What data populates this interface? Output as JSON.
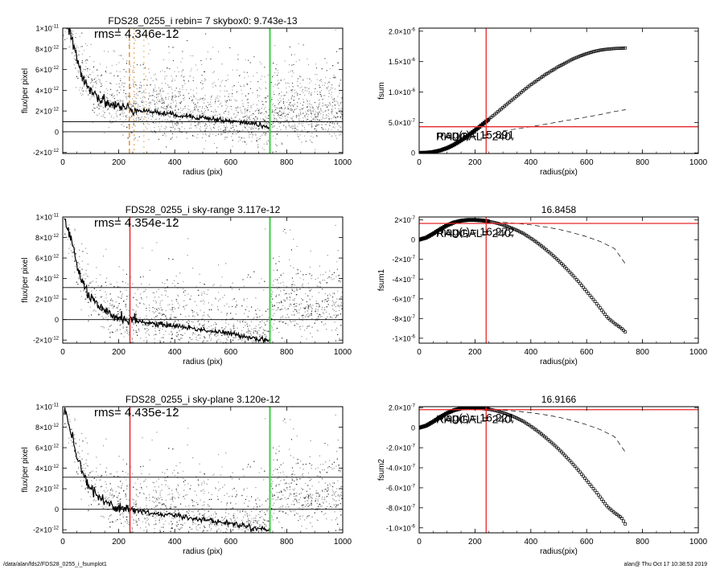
{
  "colors": {
    "scatter": "#999999",
    "scatter_dark": "#333333",
    "profile": "#000000",
    "red": "#e8262a",
    "green": "#3fcf3f",
    "orange": "#e8962e",
    "axis": "#000000",
    "sum_marker": "#000000"
  },
  "footer": {
    "left": "/data/alan/fds2/FDS28_0255_i_fsumplot1",
    "right": "alan@  Thu Oct 17 10:38:53 2019"
  },
  "chart_data": [
    {
      "id": "flux1",
      "type": "scatter",
      "title": "FDS28_0255_i rebin= 7    skybox0:  9.743e-13",
      "rms_label": "rms= 4.346e-12",
      "xlabel": "radius (pix)",
      "ylabel": "flux/per pixel",
      "xlim": [
        0,
        1000
      ],
      "ylim": [
        -2.1e-12,
        1e-11
      ],
      "x_ticks": [
        0,
        200,
        400,
        600,
        800,
        1000
      ],
      "x_tick_labels": [
        "0",
        "200",
        "400",
        "600",
        "800",
        "1000"
      ],
      "y_ticks": [
        -2e-12,
        0,
        2e-12,
        4e-12,
        6e-12,
        8e-12,
        1e-11
      ],
      "y_tick_labels": [
        "-2×10",
        "0",
        "2×10",
        "4×10",
        "6×10",
        "8×10",
        "1×10"
      ],
      "y_tick_exponents": [
        "-12",
        "",
        "-12",
        "-12",
        "-12",
        "-12",
        "-11"
      ],
      "hlines": [
        0,
        9.743e-13
      ],
      "vlines": [
        {
          "x": 238,
          "color": "orange",
          "dash": "6,4",
          "width": 1.5
        },
        {
          "x": 255,
          "color": "orange",
          "dash": "2,4",
          "width": 1
        },
        {
          "x": 290,
          "color": "orange",
          "dash": "2,5",
          "width": 0.8
        },
        {
          "x": 740,
          "color": "green",
          "dash": "",
          "width": 2
        }
      ],
      "profile": {
        "x": [
          5,
          20,
          35,
          50,
          65,
          80,
          100,
          120,
          140,
          160,
          180,
          200,
          220,
          240,
          260,
          280,
          300,
          350,
          400,
          450,
          500,
          550,
          600,
          650,
          700,
          740
        ],
        "y": [
          1.05e-11,
          1e-11,
          8.7e-12,
          7e-12,
          5.8e-12,
          4.9e-12,
          4.1e-12,
          3.5e-12,
          3.1e-12,
          2.8e-12,
          2.6e-12,
          2.4e-12,
          2.3e-12,
          2.2e-12,
          2.15e-12,
          2.1e-12,
          2e-12,
          1.8e-12,
          1.65e-12,
          1.5e-12,
          1.35e-12,
          1.2e-12,
          1e-12,
          9e-13,
          7e-13,
          4e-13
        ]
      },
      "scatter_offset": 0
    },
    {
      "id": "fsum",
      "type": "scatter",
      "title": "",
      "xlabel": "radius(pix)",
      "ylabel": "fsum",
      "xlim": [
        0,
        1000
      ],
      "ylim": [
        -1e-08,
        2.05e-06
      ],
      "x_ticks": [
        0,
        200,
        400,
        600,
        800,
        1000
      ],
      "x_tick_labels": [
        "0",
        "200",
        "400",
        "600",
        "800",
        "1000"
      ],
      "y_ticks": [
        0,
        5e-07,
        1e-06,
        1.5e-06,
        2e-06
      ],
      "y_tick_labels": [
        "0",
        "5.0×10",
        "1.0×10",
        "1.5×10",
        "2.0×10"
      ],
      "y_tick_exponents": [
        "",
        "-7",
        "-6",
        "-6",
        "-6"
      ],
      "overlap_labels": [
        "mag(r)= 15.891",
        "RADGAL=     240."
      ],
      "hline": 4.3e-07,
      "vline": 240,
      "points": {
        "x": [
          0,
          25,
          50,
          75,
          100,
          125,
          150,
          175,
          200,
          225,
          250,
          275,
          300,
          325,
          350,
          375,
          400,
          425,
          450,
          475,
          500,
          525,
          550,
          575,
          600,
          625,
          650,
          675,
          700,
          725,
          740
        ],
        "y": [
          0,
          3e-09,
          1.5e-08,
          4e-08,
          8e-08,
          1.35e-07,
          2.05e-07,
          2.85e-07,
          3.7e-07,
          4.6e-07,
          5.55e-07,
          6.5e-07,
          7.45e-07,
          8.4e-07,
          9.35e-07,
          1.03e-06,
          1.12e-06,
          1.2e-06,
          1.28e-06,
          1.35e-06,
          1.42e-06,
          1.48e-06,
          1.54e-06,
          1.59e-06,
          1.63e-06,
          1.665e-06,
          1.69e-06,
          1.705e-06,
          1.715e-06,
          1.72e-06,
          1.725e-06
        ]
      },
      "dashed": {
        "x": [
          300,
          350,
          400,
          450,
          500,
          550,
          600,
          650,
          700,
          740
        ],
        "y": [
          3.6e-07,
          3.95e-07,
          4.3e-07,
          4.7e-07,
          5.1e-07,
          5.5e-07,
          5.9e-07,
          6.3e-07,
          6.8e-07,
          7.1e-07
        ]
      }
    },
    {
      "id": "flux2",
      "type": "scatter",
      "title": "FDS28_0255_i sky-range  3.117e-12",
      "rms_label": "rms= 4.354e-12",
      "xlabel": "radius (pix)",
      "ylabel": "flux/per pixel",
      "xlim": [
        0,
        1000
      ],
      "ylim": [
        -2.3e-12,
        1e-11
      ],
      "x_ticks": [
        0,
        200,
        400,
        600,
        800,
        1000
      ],
      "x_tick_labels": [
        "0",
        "200",
        "400",
        "600",
        "800",
        "1000"
      ],
      "y_ticks": [
        -2e-12,
        0,
        2e-12,
        4e-12,
        6e-12,
        8e-12,
        1e-11
      ],
      "y_tick_labels": [
        "-2×10",
        "0",
        "2×10",
        "4×10",
        "6×10",
        "8×10",
        "1×10"
      ],
      "y_tick_exponents": [
        "-12",
        "",
        "-12",
        "-12",
        "-12",
        "-12",
        "-11"
      ],
      "hlines": [
        0,
        3.117e-12
      ],
      "vlines": [
        {
          "x": 240,
          "color": "red",
          "dash": "",
          "width": 1.5
        },
        {
          "x": 740,
          "color": "green",
          "dash": "",
          "width": 2
        }
      ],
      "profile": {
        "x": [
          5,
          20,
          35,
          50,
          65,
          80,
          100,
          120,
          140,
          160,
          180,
          200,
          220,
          240,
          260,
          280,
          300,
          350,
          400,
          450,
          500,
          550,
          600,
          650,
          700,
          740
        ],
        "y": [
          1e-11,
          8.8e-12,
          7.2e-12,
          5.3e-12,
          4e-12,
          3.1e-12,
          2.1e-12,
          1.4e-12,
          9e-13,
          6e-13,
          4e-13,
          2e-13,
          1e-13,
          0,
          -1e-13,
          -2e-13,
          -3e-13,
          -5e-13,
          -6e-13,
          -8e-13,
          -1e-12,
          -1.2e-12,
          -1.4e-12,
          -1.6e-12,
          -1.9e-12,
          -2e-12
        ]
      },
      "scatter_offset": -2.1e-12
    },
    {
      "id": "fsum1",
      "type": "scatter",
      "title": "16.8458",
      "xlabel": "radius(pix)",
      "ylabel": "fsum1",
      "xlim": [
        0,
        1000
      ],
      "ylim": [
        -1.05e-06,
        2.3e-07
      ],
      "x_ticks": [
        0,
        200,
        400,
        600,
        800,
        1000
      ],
      "x_tick_labels": [
        "0",
        "200",
        "400",
        "600",
        "800",
        "1000"
      ],
      "y_ticks": [
        -1e-06,
        -8e-07,
        -6e-07,
        -4e-07,
        -2e-07,
        0,
        2e-07
      ],
      "y_tick_labels": [
        "-1×10",
        "-8×10",
        "-6×10",
        "-4×10",
        "-2×10",
        "0",
        "2×10"
      ],
      "y_tick_exponents": [
        "-6",
        "-7",
        "-7",
        "-7",
        "-7",
        "",
        "-7"
      ],
      "overlap_labels": [
        "mag(r)= 16.272",
        "RADGAL=     240."
      ],
      "hline": 1.65e-07,
      "vline": 240,
      "points": {
        "x": [
          0,
          25,
          50,
          75,
          100,
          125,
          150,
          175,
          200,
          225,
          250,
          275,
          300,
          325,
          350,
          375,
          400,
          425,
          450,
          475,
          500,
          525,
          550,
          575,
          600,
          625,
          650,
          675,
          700,
          725,
          740
        ],
        "y": [
          0,
          2e-08,
          6e-08,
          1.05e-07,
          1.45e-07,
          1.75e-07,
          1.92e-07,
          2e-07,
          2e-07,
          1.95e-07,
          1.85e-07,
          1.7e-07,
          1.5e-07,
          1.25e-07,
          9.5e-08,
          6e-08,
          1.5e-08,
          -3.5e-08,
          -9e-08,
          -1.5e-07,
          -2.15e-07,
          -2.85e-07,
          -3.6e-07,
          -4.4e-07,
          -5.25e-07,
          -6.1e-07,
          -7e-07,
          -7.9e-07,
          -8.5e-07,
          -9e-07,
          -9.4e-07
        ]
      },
      "dashed": {
        "x": [
          300,
          350,
          400,
          450,
          500,
          550,
          600,
          650,
          700,
          740
        ],
        "y": [
          1.75e-07,
          1.65e-07,
          1.5e-07,
          1.3e-07,
          1.05e-07,
          7e-08,
          3e-08,
          -2e-08,
          -9e-08,
          -2.5e-07
        ]
      }
    },
    {
      "id": "flux3",
      "type": "scatter",
      "title": "FDS28_0255_i sky-plane  3.120e-12",
      "rms_label": "rms= 4.435e-12",
      "xlabel": "radius (pix)",
      "ylabel": "flux/per pixel",
      "xlim": [
        0,
        1000
      ],
      "ylim": [
        -2.3e-12,
        1e-11
      ],
      "x_ticks": [
        0,
        200,
        400,
        600,
        800,
        1000
      ],
      "x_tick_labels": [
        "0",
        "200",
        "400",
        "600",
        "800",
        "1000"
      ],
      "y_ticks": [
        -2e-12,
        0,
        2e-12,
        4e-12,
        6e-12,
        8e-12,
        1e-11
      ],
      "y_tick_labels": [
        "-2×10",
        "0",
        "2×10",
        "4×10",
        "6×10",
        "8×10",
        "1×10"
      ],
      "y_tick_exponents": [
        "-12",
        "",
        "-12",
        "-12",
        "-12",
        "-12",
        "-11"
      ],
      "hlines": [
        0,
        3.12e-12
      ],
      "vlines": [
        {
          "x": 240,
          "color": "red",
          "dash": "",
          "width": 1.5
        },
        {
          "x": 740,
          "color": "green",
          "dash": "",
          "width": 2
        }
      ],
      "profile": {
        "x": [
          5,
          20,
          35,
          50,
          65,
          80,
          100,
          120,
          140,
          160,
          180,
          200,
          220,
          240,
          260,
          280,
          300,
          350,
          400,
          450,
          500,
          550,
          600,
          650,
          700,
          740
        ],
        "y": [
          1e-11,
          8.8e-12,
          7.2e-12,
          5.3e-12,
          4e-12,
          3.1e-12,
          2.1e-12,
          1.4e-12,
          9e-13,
          6e-13,
          4e-13,
          2e-13,
          1e-13,
          0,
          -1e-13,
          -2e-13,
          -3e-13,
          -5e-13,
          -6e-13,
          -8e-13,
          -1e-12,
          -1.2e-12,
          -1.4e-12,
          -1.6e-12,
          -1.9e-12,
          -2e-12
        ]
      },
      "scatter_offset": -2.1e-12
    },
    {
      "id": "fsum2",
      "type": "scatter",
      "title": "16.9166",
      "xlabel": "radius(pix)",
      "ylabel": "fsum2",
      "xlim": [
        0,
        1000
      ],
      "ylim": [
        -1.05e-06,
        2.1e-07
      ],
      "x_ticks": [
        0,
        200,
        400,
        600,
        800,
        1000
      ],
      "x_tick_labels": [
        "0",
        "200",
        "400",
        "600",
        "800",
        "1000"
      ],
      "y_ticks": [
        -1e-06,
        -8e-07,
        -6e-07,
        -4e-07,
        -2e-07,
        0,
        2e-07
      ],
      "y_tick_labels": [
        "-1.0×10",
        "-8.0×10",
        "-6.0×10",
        "-4.0×10",
        "-2.0×10",
        "0",
        "2.0×10"
      ],
      "y_tick_exponents": [
        "-6",
        "-7",
        "-7",
        "-7",
        "-7",
        "",
        "-7"
      ],
      "overlap_labels": [
        "mag(r)= 16.221",
        "RADGAL=     240."
      ],
      "hline": 1.8e-07,
      "vline": 240,
      "points": {
        "x": [
          0,
          25,
          50,
          75,
          100,
          125,
          150,
          175,
          200,
          225,
          250,
          275,
          300,
          325,
          350,
          375,
          400,
          425,
          450,
          475,
          500,
          525,
          550,
          575,
          600,
          625,
          650,
          675,
          700,
          725,
          740
        ],
        "y": [
          0,
          2e-08,
          6e-08,
          1.05e-07,
          1.45e-07,
          1.75e-07,
          1.92e-07,
          2e-07,
          2e-07,
          1.95e-07,
          1.85e-07,
          1.7e-07,
          1.5e-07,
          1.25e-07,
          9.5e-08,
          6e-08,
          1.5e-08,
          -3.5e-08,
          -9e-08,
          -1.5e-07,
          -2.15e-07,
          -2.85e-07,
          -3.6e-07,
          -4.4e-07,
          -5.25e-07,
          -6.1e-07,
          -7e-07,
          -7.9e-07,
          -8.5e-07,
          -9e-07,
          -9.7e-07
        ]
      },
      "dashed": {
        "x": [
          300,
          350,
          400,
          450,
          500,
          550,
          600,
          650,
          700,
          740
        ],
        "y": [
          1.75e-07,
          1.65e-07,
          1.5e-07,
          1.3e-07,
          1.05e-07,
          7e-08,
          3e-08,
          -2e-08,
          -9e-08,
          -2.5e-07
        ]
      }
    }
  ]
}
